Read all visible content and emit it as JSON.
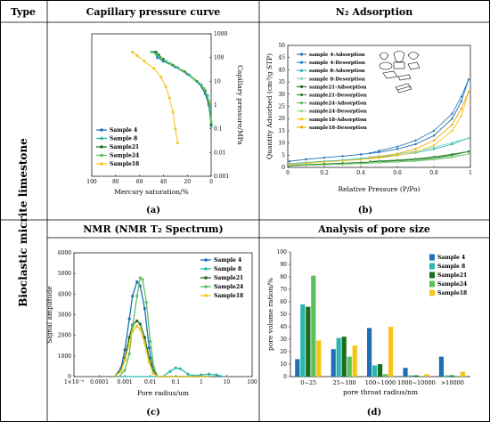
{
  "table": {
    "col_type": "Type",
    "col_capillary": "Capillary pressure curve",
    "col_n2": "N₂ Adsorption",
    "col_nmr": "NMR (NMR T₂ Spectrum)",
    "col_pore": "Analysis of pore size",
    "row_label": "Bioclastic micrite limestone",
    "panel_a": "(a)",
    "panel_b": "(b)",
    "panel_c": "(c)",
    "panel_d": "(d)"
  },
  "colors": {
    "s4": "#1f6fb4",
    "s8": "#2ab7b0",
    "s21": "#1a6d1a",
    "s24": "#5cc05c",
    "s18": "#f5c518"
  },
  "chart_data": [
    {
      "type": "line",
      "id": "capillary",
      "xlabel": "Mercury saturation/%",
      "ylabel": "Capillary pressure/MPa",
      "xlim": [
        100,
        0
      ],
      "ylim": [
        0.001,
        1000
      ],
      "y_scale": "log",
      "x_ticks": [
        "100",
        "80",
        "60",
        "40",
        "20",
        "0"
      ],
      "y_ticks": [
        "0.001",
        "0.01",
        "0.1",
        "1",
        "10",
        "100",
        "1000"
      ],
      "legend": "bottom-left",
      "series": [
        {
          "name": "Sample  4",
          "color": "#1f6fb4",
          "points": [
            [
              0,
              0.15
            ],
            [
              2,
              1
            ],
            [
              5,
              3
            ],
            [
              10,
              8
            ],
            [
              20,
              20
            ],
            [
              30,
              40
            ],
            [
              40,
              70
            ],
            [
              45,
              100
            ],
            [
              48,
              170
            ]
          ]
        },
        {
          "name": "Sample  8",
          "color": "#2ab7b0",
          "points": [
            [
              0,
              0.12
            ],
            [
              1,
              0.8
            ],
            [
              3,
              2.5
            ],
            [
              8,
              7
            ],
            [
              18,
              18
            ],
            [
              28,
              38
            ],
            [
              38,
              68
            ],
            [
              44,
              110
            ],
            [
              47,
              170
            ]
          ]
        },
        {
          "name": "Sample21",
          "color": "#1a6d1a",
          "points": [
            [
              0,
              0.15
            ],
            [
              2,
              1.2
            ],
            [
              5,
              4
            ],
            [
              12,
              10
            ],
            [
              22,
              25
            ],
            [
              32,
              48
            ],
            [
              40,
              85
            ],
            [
              44,
              130
            ],
            [
              46,
              170
            ]
          ]
        },
        {
          "name": "Sample24",
          "color": "#5cc05c",
          "points": [
            [
              0,
              0.2
            ],
            [
              2,
              1.5
            ],
            [
              6,
              5
            ],
            [
              14,
              12
            ],
            [
              24,
              28
            ],
            [
              34,
              55
            ],
            [
              42,
              95
            ],
            [
              46,
              140
            ],
            [
              50,
              170
            ]
          ]
        },
        {
          "name": "Sample18",
          "color": "#f5c518",
          "points": [
            [
              28,
              0.025
            ],
            [
              30,
              0.1
            ],
            [
              32,
              0.5
            ],
            [
              35,
              2
            ],
            [
              38,
              6
            ],
            [
              42,
              15
            ],
            [
              48,
              35
            ],
            [
              56,
              70
            ],
            [
              62,
              120
            ],
            [
              66,
              170
            ]
          ]
        }
      ]
    },
    {
      "type": "line",
      "id": "n2",
      "xlabel": "Relative Pressure (P/Po)",
      "ylabel": "Quantity Adsorbed (cm³/g STP)",
      "xlim": [
        0,
        1
      ],
      "ylim": [
        0,
        50
      ],
      "x_ticks": [
        "0",
        "0.2",
        "0.4",
        "0.6",
        "0.8",
        "1"
      ],
      "y_ticks": [
        "0",
        "5",
        "10",
        "15",
        "20",
        "25",
        "30",
        "35",
        "40",
        "45",
        "50"
      ],
      "legend": "top-left",
      "series": [
        {
          "name": "sample  4-Adsorption",
          "color": "#1f6fb4",
          "points": [
            [
              0.01,
              2.5
            ],
            [
              0.1,
              3.3
            ],
            [
              0.2,
              4
            ],
            [
              0.3,
              4.6
            ],
            [
              0.4,
              5.3
            ],
            [
              0.5,
              6.2
            ],
            [
              0.6,
              7.5
            ],
            [
              0.7,
              9.5
            ],
            [
              0.8,
              13
            ],
            [
              0.9,
              20
            ],
            [
              0.95,
              27
            ],
            [
              0.99,
              36
            ]
          ]
        },
        {
          "name": "sample  4-Desorption",
          "color": "#2a80c0",
          "points": [
            [
              0.99,
              36
            ],
            [
              0.95,
              29
            ],
            [
              0.9,
              22
            ],
            [
              0.8,
              15
            ],
            [
              0.7,
              11
            ],
            [
              0.6,
              8.5
            ],
            [
              0.5,
              6.8
            ],
            [
              0.45,
              5.8
            ]
          ]
        },
        {
          "name": "sample  8-Adsorption",
          "color": "#2ab7b0",
          "points": [
            [
              0.01,
              1.5
            ],
            [
              0.1,
              2
            ],
            [
              0.2,
              2.5
            ],
            [
              0.3,
              3
            ],
            [
              0.4,
              3.6
            ],
            [
              0.5,
              4.2
            ],
            [
              0.6,
              5
            ],
            [
              0.7,
              6
            ],
            [
              0.8,
              7.5
            ],
            [
              0.9,
              9.5
            ],
            [
              0.99,
              12
            ]
          ]
        },
        {
          "name": "sample  8-Desorption",
          "color": "#7fd6d0",
          "points": [
            [
              0.99,
              12
            ],
            [
              0.9,
              10.2
            ],
            [
              0.8,
              8.2
            ],
            [
              0.7,
              6.6
            ],
            [
              0.6,
              5.5
            ],
            [
              0.5,
              4.6
            ],
            [
              0.45,
              4.2
            ]
          ]
        },
        {
          "name": "sample21-Adsorption",
          "color": "#1a6d1a",
          "points": [
            [
              0.01,
              0.8
            ],
            [
              0.1,
              1.1
            ],
            [
              0.2,
              1.4
            ],
            [
              0.3,
              1.7
            ],
            [
              0.4,
              2
            ],
            [
              0.5,
              2.3
            ],
            [
              0.6,
              2.7
            ],
            [
              0.7,
              3.2
            ],
            [
              0.8,
              3.9
            ],
            [
              0.9,
              5
            ],
            [
              0.99,
              6.5
            ]
          ]
        },
        {
          "name": "sample21-Desorption",
          "color": "#2e8b2e",
          "points": [
            [
              0.99,
              6.5
            ],
            [
              0.9,
              5.4
            ],
            [
              0.8,
              4.3
            ],
            [
              0.7,
              3.5
            ],
            [
              0.6,
              3
            ],
            [
              0.5,
              2.6
            ],
            [
              0.45,
              2.4
            ]
          ]
        },
        {
          "name": "sample24-Adsorption",
          "color": "#5cc05c",
          "points": [
            [
              0.01,
              0.6
            ],
            [
              0.1,
              0.9
            ],
            [
              0.2,
              1.1
            ],
            [
              0.3,
              1.3
            ],
            [
              0.4,
              1.6
            ],
            [
              0.5,
              1.9
            ],
            [
              0.6,
              2.2
            ],
            [
              0.7,
              2.6
            ],
            [
              0.8,
              3.2
            ],
            [
              0.9,
              4.1
            ],
            [
              0.99,
              5.5
            ]
          ]
        },
        {
          "name": "sample24-Desorption",
          "color": "#9bd89b",
          "points": [
            [
              0.99,
              5.5
            ],
            [
              0.9,
              4.5
            ],
            [
              0.8,
              3.6
            ],
            [
              0.7,
              2.9
            ],
            [
              0.6,
              2.4
            ],
            [
              0.5,
              2.1
            ],
            [
              0.45,
              1.9
            ]
          ]
        },
        {
          "name": "sample18-Adsorption",
          "color": "#f5c518",
          "points": [
            [
              0.01,
              1.2
            ],
            [
              0.1,
              1.7
            ],
            [
              0.2,
              2.2
            ],
            [
              0.3,
              2.7
            ],
            [
              0.4,
              3.2
            ],
            [
              0.5,
              3.9
            ],
            [
              0.6,
              4.8
            ],
            [
              0.7,
              6.3
            ],
            [
              0.8,
              9
            ],
            [
              0.9,
              15
            ],
            [
              0.95,
              21
            ],
            [
              0.99,
              31
            ]
          ]
        },
        {
          "name": "sample18-Desorption",
          "color": "#f2a900",
          "points": [
            [
              0.99,
              31
            ],
            [
              0.95,
              24
            ],
            [
              0.9,
              17.5
            ],
            [
              0.8,
              11
            ],
            [
              0.7,
              7.6
            ],
            [
              0.6,
              5.6
            ],
            [
              0.5,
              4.4
            ],
            [
              0.45,
              3.9
            ]
          ]
        }
      ]
    },
    {
      "type": "line",
      "id": "nmr",
      "xlabel": "Pore radius/um",
      "ylabel": "Signal amplitude",
      "x_scale": "log",
      "xlim": [
        1e-05,
        100
      ],
      "ylim": [
        0,
        6000
      ],
      "x_ticks": [
        "1×10⁻⁵",
        "0.0001",
        "0.001",
        "0.01",
        "0.1",
        "1",
        "10",
        "100"
      ],
      "y_ticks": [
        "0",
        "1000",
        "2000",
        "3000",
        "4000",
        "5000",
        "6000"
      ],
      "legend": "top-right",
      "series": [
        {
          "name": "Sample  4",
          "color": "#1f6fb4",
          "points": [
            [
              0.0004,
              0
            ],
            [
              0.0007,
              400
            ],
            [
              0.001,
              1300
            ],
            [
              0.0015,
              2800
            ],
            [
              0.002,
              3900
            ],
            [
              0.003,
              4600
            ],
            [
              0.004,
              4400
            ],
            [
              0.006,
              3300
            ],
            [
              0.009,
              1400
            ],
            [
              0.013,
              300
            ],
            [
              0.02,
              0
            ],
            [
              0.05,
              0
            ],
            [
              2,
              0
            ]
          ]
        },
        {
          "name": "Sample  8",
          "color": "#2ab7b0",
          "points": [
            [
              0.0005,
              0
            ],
            [
              0.01,
              0
            ],
            [
              0.03,
              0
            ],
            [
              0.06,
              250
            ],
            [
              0.1,
              420
            ],
            [
              0.15,
              380
            ],
            [
              0.3,
              120
            ],
            [
              0.5,
              40
            ],
            [
              1,
              80
            ],
            [
              2,
              120
            ],
            [
              4,
              80
            ],
            [
              8,
              0
            ]
          ]
        },
        {
          "name": "Sample21",
          "color": "#1a6d1a",
          "points": [
            [
              0.0004,
              0
            ],
            [
              0.0007,
              300
            ],
            [
              0.001,
              900
            ],
            [
              0.0015,
              1900
            ],
            [
              0.002,
              2500
            ],
            [
              0.003,
              2700
            ],
            [
              0.004,
              2550
            ],
            [
              0.006,
              1900
            ],
            [
              0.009,
              900
            ],
            [
              0.013,
              200
            ],
            [
              0.02,
              0
            ],
            [
              2,
              0
            ]
          ]
        },
        {
          "name": "Sample24",
          "color": "#5cc05c",
          "points": [
            [
              0.0006,
              0
            ],
            [
              0.001,
              300
            ],
            [
              0.0015,
              1100
            ],
            [
              0.002,
              2400
            ],
            [
              0.003,
              3900
            ],
            [
              0.004,
              4800
            ],
            [
              0.005,
              4700
            ],
            [
              0.007,
              3600
            ],
            [
              0.01,
              1700
            ],
            [
              0.014,
              400
            ],
            [
              0.02,
              0
            ],
            [
              2,
              0
            ]
          ]
        },
        {
          "name": "Sample18",
          "color": "#f5c518",
          "points": [
            [
              0.0004,
              0
            ],
            [
              0.0007,
              250
            ],
            [
              0.001,
              800
            ],
            [
              0.0015,
              1600
            ],
            [
              0.002,
              2200
            ],
            [
              0.003,
              2450
            ],
            [
              0.004,
              2300
            ],
            [
              0.006,
              1600
            ],
            [
              0.009,
              700
            ],
            [
              0.013,
              150
            ],
            [
              0.02,
              0
            ],
            [
              2,
              0
            ]
          ]
        }
      ]
    },
    {
      "type": "bar",
      "id": "pore",
      "xlabel": "pore throat radius/nm",
      "ylabel": "pore volume ration/%",
      "ylim": [
        0,
        100
      ],
      "y_ticks": [
        "0",
        "10",
        "20",
        "30",
        "40",
        "50",
        "60",
        "70",
        "80",
        "90",
        "100"
      ],
      "categories": [
        "0~25",
        "25~100",
        "100~1000",
        "1000~10000",
        ">10000"
      ],
      "legend": "top-right",
      "series": [
        {
          "name": "Sample  4",
          "color": "#1f6fb4",
          "values": [
            14,
            22,
            39,
            7,
            16
          ]
        },
        {
          "name": "Sample  8",
          "color": "#2ab7b0",
          "values": [
            58,
            31,
            9,
            1,
            1
          ]
        },
        {
          "name": "Sample21",
          "color": "#1a6d1a",
          "values": [
            56,
            32,
            10,
            1,
            1
          ]
        },
        {
          "name": "Sample24",
          "color": "#5cc05c",
          "values": [
            81,
            16,
            2,
            0.5,
            0.5
          ]
        },
        {
          "name": "Sample18",
          "color": "#f5c518",
          "values": [
            29,
            25,
            40,
            2,
            4
          ]
        }
      ]
    }
  ]
}
